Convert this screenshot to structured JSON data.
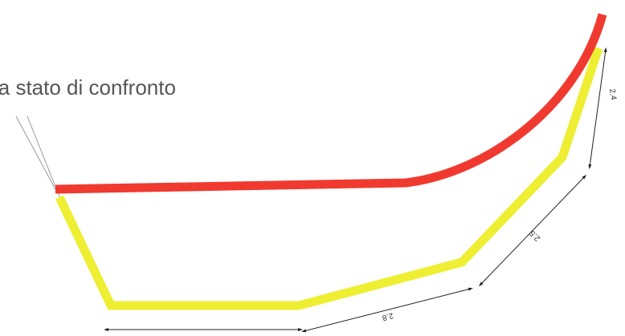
{
  "caption": "ia stato di confronto",
  "dimensions": [
    {
      "label": "2.4"
    },
    {
      "label": "2.5"
    },
    {
      "label": "2.8"
    }
  ]
}
